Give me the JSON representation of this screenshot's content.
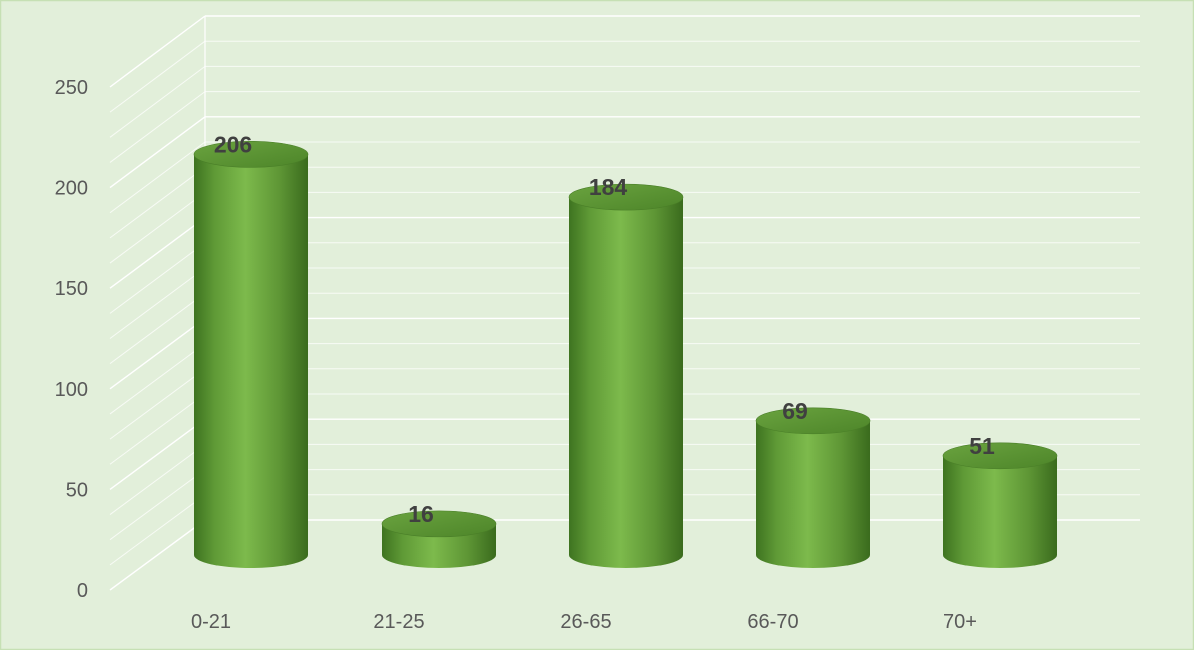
{
  "chart_data": {
    "type": "bar",
    "style": "3d-cylinder",
    "categories": [
      "0-21",
      "21-25",
      "26-65",
      "66-70",
      "70+"
    ],
    "values": [
      206,
      16,
      184,
      69,
      51
    ],
    "data_labels": [
      "206",
      "16",
      "184",
      "69",
      "51"
    ],
    "title": "",
    "xlabel": "",
    "ylabel": "",
    "ylim": [
      0,
      250
    ],
    "yticks": [
      "0",
      "50",
      "100",
      "150",
      "200",
      "250"
    ],
    "grid": true,
    "legend": "none"
  },
  "colors": {
    "background": "#e2efda",
    "frame": "#c6e0b4",
    "gridline": "#ffffff",
    "bar_dark": "#3e7320",
    "bar_mid": "#70ad47",
    "bar_light": "#8bc34a",
    "bar_top": "#5c9a35"
  }
}
